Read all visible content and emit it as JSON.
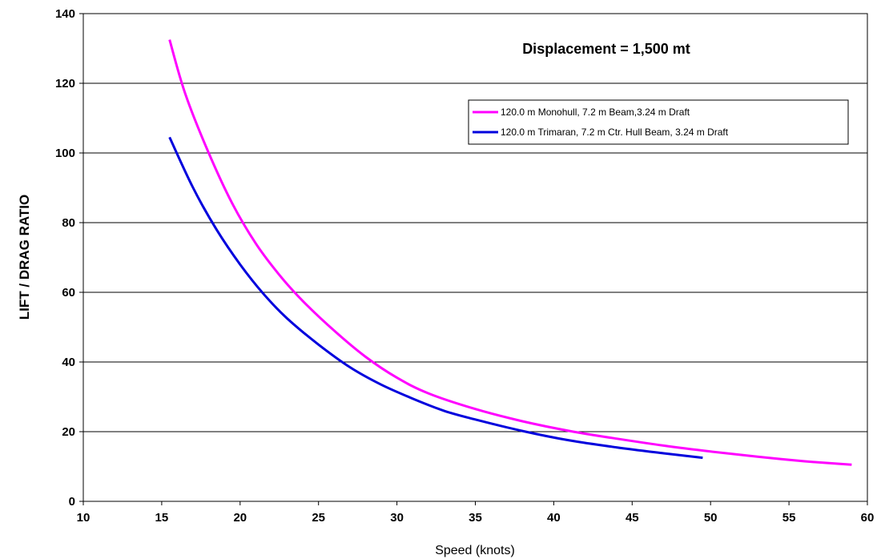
{
  "chart_data": {
    "type": "line",
    "xlabel": "Speed (knots)",
    "ylabel": "LIFT / DRAG RATIO",
    "xlim": [
      10,
      60
    ],
    "ylim": [
      0,
      140
    ],
    "xticks": [
      "10",
      "15",
      "20",
      "25",
      "30",
      "35",
      "40",
      "45",
      "50",
      "55",
      "60"
    ],
    "yticks": [
      "0",
      "20",
      "40",
      "60",
      "80",
      "100",
      "120",
      "140"
    ],
    "grid": "horizontal",
    "legend_position": "upper-right",
    "annotation": "Displacement = 1,500 mt",
    "series": [
      {
        "name": "120.0 m Monohull, 7.2 m Beam,3.24 m Draft",
        "color": "#ff00ff",
        "x": [
          15.5,
          16.5,
          18,
          19.5,
          21,
          22.5,
          24,
          26,
          28,
          30,
          32,
          35,
          38,
          41,
          44,
          47,
          50,
          53,
          56,
          59
        ],
        "y": [
          132.5,
          117,
          100,
          85.5,
          74,
          65,
          57.5,
          49,
          41.5,
          35.5,
          31,
          26.5,
          23,
          20.2,
          18,
          16,
          14.3,
          12.8,
          11.5,
          10.5
        ]
      },
      {
        "name": "120.0 m Trimaran, 7.2 m Ctr. Hull Beam, 3.24 m Draft",
        "color": "#0000dd",
        "x": [
          15.5,
          17,
          18.5,
          20,
          21.5,
          23,
          25,
          27,
          29,
          31,
          33,
          35,
          38,
          41,
          44,
          47,
          49.5
        ],
        "y": [
          104.5,
          90,
          78,
          68,
          59.5,
          52.5,
          45,
          38.5,
          33.5,
          29.5,
          26,
          23.5,
          20.2,
          17.5,
          15.5,
          13.8,
          12.5
        ]
      }
    ]
  }
}
